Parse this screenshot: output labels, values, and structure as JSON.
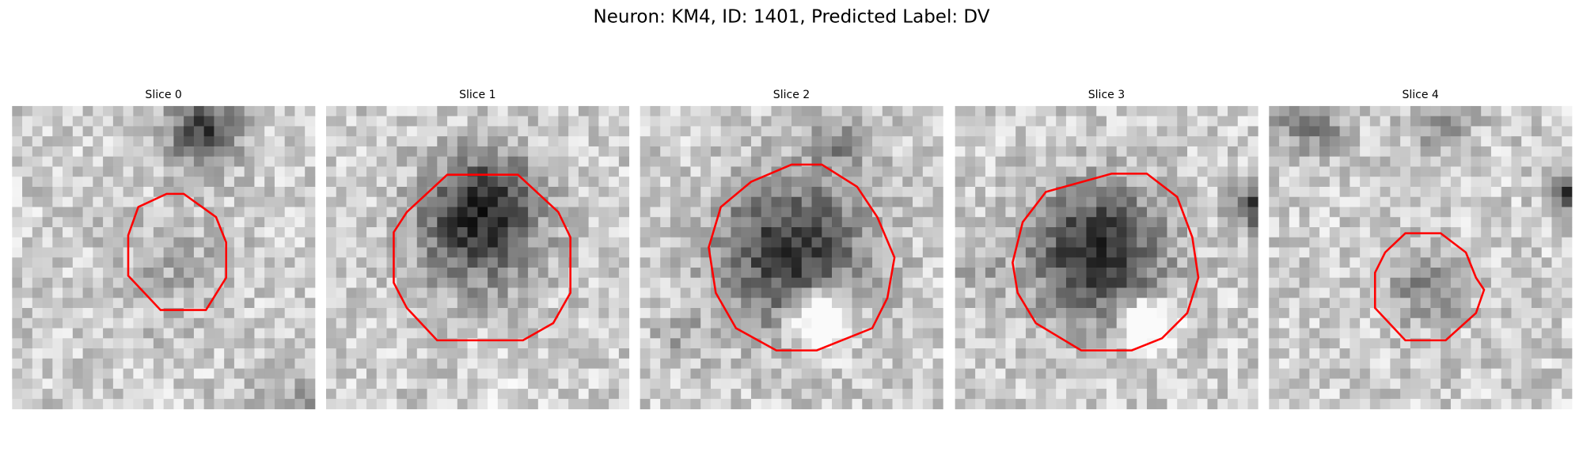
{
  "title": "Neuron: KM4, ID: 1401, Predicted Label: DV",
  "panels": [
    {
      "title": "Slice 0"
    },
    {
      "title": "Slice 1"
    },
    {
      "title": "Slice 2"
    },
    {
      "title": "Slice 3"
    },
    {
      "title": "Slice 4"
    }
  ]
}
